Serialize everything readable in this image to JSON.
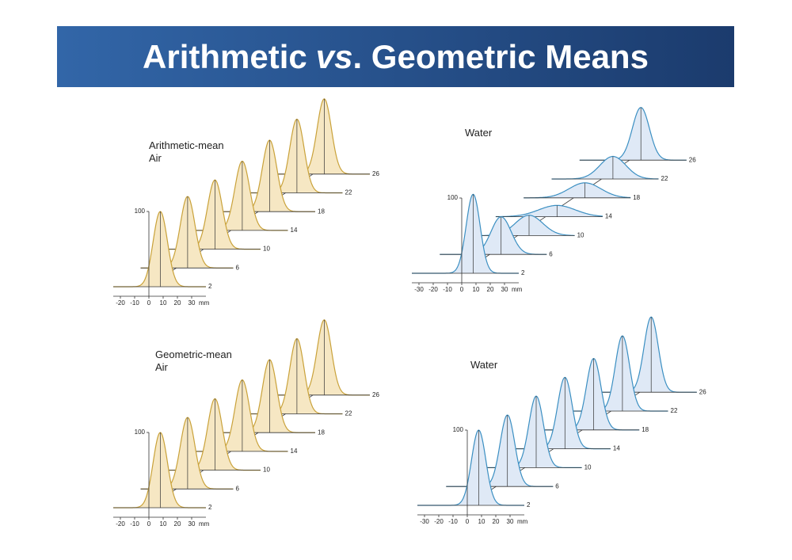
{
  "header": {
    "title_parts": [
      "Arithmetic",
      "vs",
      ". Geometric Means"
    ]
  },
  "chart_data": [
    {
      "type": "ridgeline",
      "title": "Arithmetic-mean Air",
      "categories": [
        2,
        6,
        10,
        14,
        18,
        22,
        26
      ],
      "values": [
        100,
        95,
        92,
        92,
        95,
        98,
        100
      ],
      "xlim": [
        -25,
        40
      ],
      "xticks": [
        -20,
        -10,
        0,
        10,
        20,
        30
      ],
      "x_label": "mm",
      "ylim": [
        0,
        100
      ],
      "yticks": [
        100
      ],
      "color": "#f6e7c3",
      "line_color": "#c9a23a"
    },
    {
      "type": "ridgeline",
      "title": "Water",
      "categories": [
        2,
        6,
        10,
        14,
        18,
        22,
        26
      ],
      "values": [
        105,
        50,
        27,
        15,
        20,
        30,
        70
      ],
      "xlim": [
        -35,
        40
      ],
      "xticks": [
        -30,
        -20,
        -10,
        0,
        10,
        20,
        30
      ],
      "x_label": "mm",
      "ylim": [
        0,
        100
      ],
      "yticks": [
        100
      ],
      "color": "#dfe9f6",
      "line_color": "#3b8fc2"
    },
    {
      "type": "ridgeline",
      "title": "Geometric-mean Air",
      "categories": [
        2,
        6,
        10,
        14,
        18,
        22,
        26
      ],
      "values": [
        100,
        95,
        95,
        95,
        97,
        100,
        100
      ],
      "xlim": [
        -25,
        40
      ],
      "xticks": [
        -20,
        -10,
        0,
        10,
        20,
        30
      ],
      "x_label": "mm",
      "ylim": [
        0,
        100
      ],
      "yticks": [
        100
      ],
      "color": "#f6e7c3",
      "line_color": "#c9a23a"
    },
    {
      "type": "ridgeline",
      "title": "Water",
      "categories": [
        2,
        6,
        10,
        14,
        18,
        22,
        26
      ],
      "values": [
        100,
        95,
        95,
        95,
        95,
        100,
        100
      ],
      "xlim": [
        -35,
        40
      ],
      "xticks": [
        -30,
        -20,
        -10,
        0,
        10,
        20,
        30
      ],
      "x_label": "mm",
      "ylim": [
        0,
        100
      ],
      "yticks": [
        100
      ],
      "color": "#dfe9f6",
      "line_color": "#3b8fc2"
    }
  ]
}
